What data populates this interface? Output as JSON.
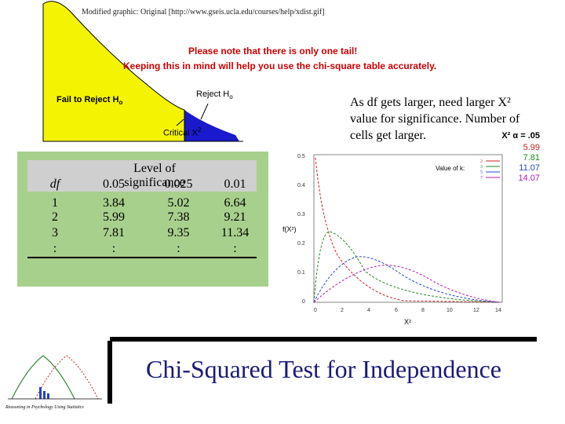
{
  "top": {
    "source_note": "Modified graphic: Original [http://www.gseis.ucla.edu/courses/help/xdist.gif]",
    "warning_line1": "Please note that there is only one tail!",
    "warning_line2": "Keeping this in mind will help you use the chi-square table accurately.",
    "fail_label": "Fail to Reject H",
    "fail_sub": "o",
    "reject_label": "Reject H",
    "reject_sub": "o",
    "critical_label": "Critical X",
    "critical_sup": "2"
  },
  "description": {
    "line1": "As df gets larger, need larger X²",
    "line2": "value for significance. Number of",
    "line3": "cells get larger."
  },
  "critical_values": {
    "header": "X² α = .05",
    "values": [
      "5.99",
      "7.81",
      "11.07",
      "14.07"
    ],
    "colors": [
      "#cc2222",
      "#228822",
      "#2244cc",
      "#aa22aa"
    ]
  },
  "table": {
    "header": "Level of significance",
    "columns": [
      "df",
      "0.05",
      "0.025",
      "0.01"
    ],
    "rows": [
      [
        "1",
        "3.84",
        "5.02",
        "6.64"
      ],
      [
        "2",
        "5.99",
        "7.38",
        "9.21"
      ],
      [
        "3",
        "7.81",
        "9.35",
        "11.34"
      ],
      [
        ":",
        ":",
        ":",
        ":"
      ]
    ]
  },
  "plot": {
    "ylabel": "f(X²)",
    "xlabel": "X²",
    "legend_title": "Value of k:",
    "legend_items": [
      "2",
      "3",
      "5",
      "7"
    ],
    "x_ticks": [
      "0",
      "2",
      "4",
      "6",
      "8",
      "10",
      "12",
      "14"
    ],
    "y_ticks": [
      "0",
      "0.1",
      "0.2",
      "0.3",
      "0.4",
      "0.5"
    ]
  },
  "footer": {
    "title": "Chi-Squared Test for Independence",
    "logo_caption": "Reasoning in Psychology Using Statistics"
  }
}
